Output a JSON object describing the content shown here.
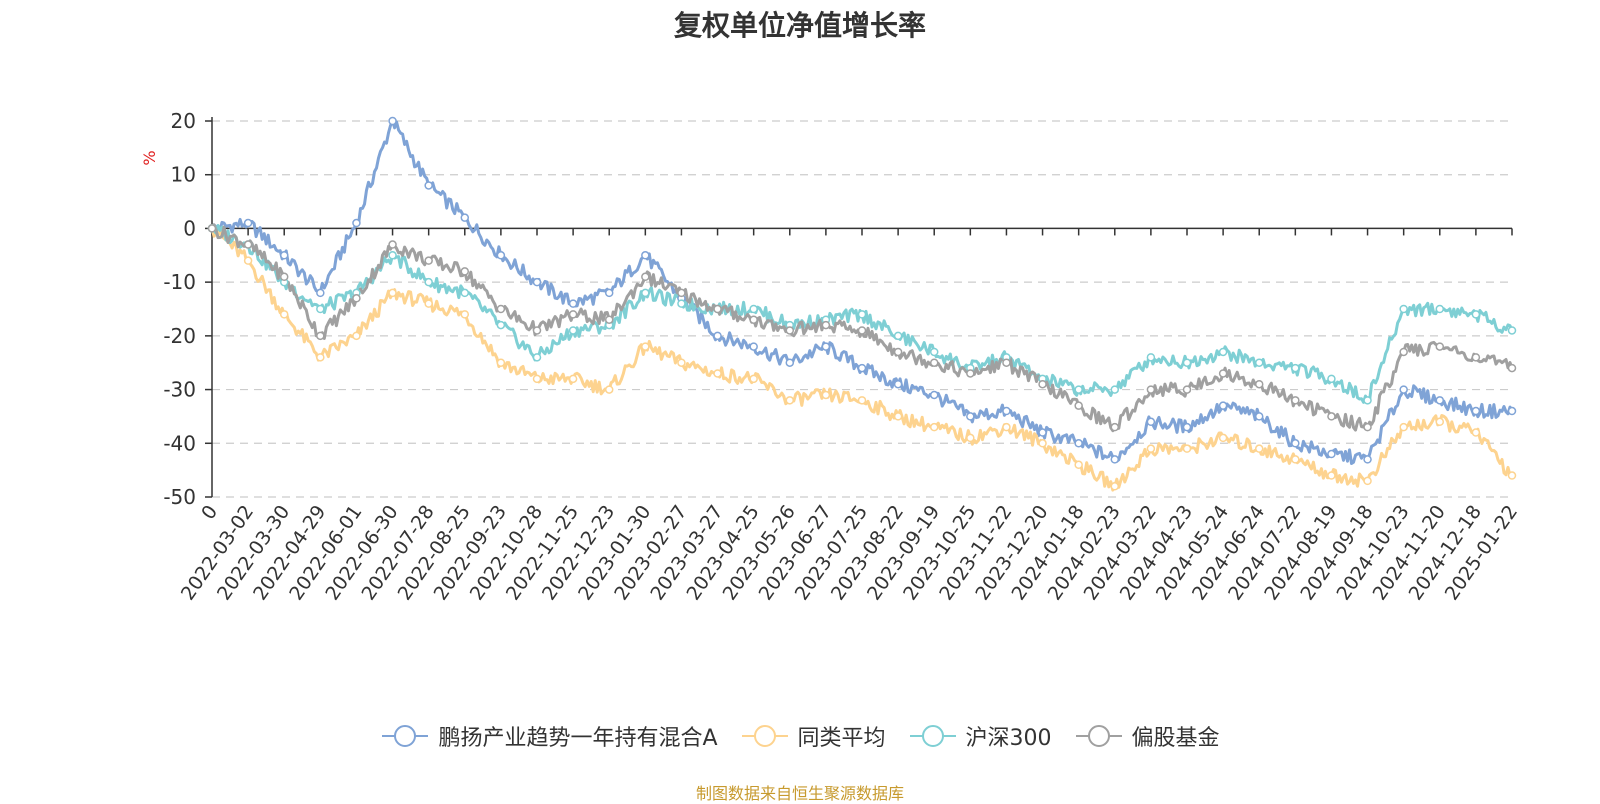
{
  "chart_data": {
    "type": "line",
    "title": "复权单位净值增长率",
    "ylabel": "%",
    "xlabel": "",
    "ylim": [
      -50,
      20
    ],
    "y_ticks": [
      20,
      10,
      0,
      -10,
      -20,
      -30,
      -40,
      -50
    ],
    "x_tick_labels": [
      "0",
      "2022-03-02",
      "2022-03-30",
      "2022-04-29",
      "2022-06-01",
      "2022-06-30",
      "2022-07-28",
      "2022-08-25",
      "2022-09-23",
      "2022-10-28",
      "2022-11-25",
      "2022-12-23",
      "2023-01-30",
      "2023-02-27",
      "2023-03-27",
      "2023-04-25",
      "2023-05-26",
      "2023-06-27",
      "2023-07-25",
      "2023-08-22",
      "2023-09-19",
      "2023-10-25",
      "2023-11-22",
      "2023-12-20",
      "2024-01-18",
      "2024-02-23",
      "2024-03-22",
      "2024-04-23",
      "2024-05-24",
      "2024-06-24",
      "2024-07-22",
      "2024-08-19",
      "2024-09-18",
      "2024-10-23",
      "2024-11-20",
      "2024-12-18",
      "2025-01-22"
    ],
    "grid": true,
    "legend_position": "bottom",
    "x_index_max": 72,
    "series": [
      {
        "name": "鹏扬产业趋势一年持有混合A",
        "color": "#7fa3d6",
        "x": [
          0,
          2,
          4,
          6,
          8,
          10,
          12,
          14,
          16,
          18,
          20,
          22,
          24,
          26,
          28,
          30,
          32,
          34,
          36,
          38,
          40,
          42,
          44,
          46,
          48,
          50,
          52,
          54,
          56,
          58,
          60,
          62,
          64,
          66,
          68,
          70,
          72
        ],
        "values": [
          0,
          1,
          -5,
          -12,
          1,
          20,
          8,
          2,
          -5,
          -10,
          -14,
          -12,
          -5,
          -13,
          -20,
          -22,
          -25,
          -22,
          -26,
          -29,
          -31,
          -35,
          -34,
          -38,
          -40,
          -43,
          -36,
          -37,
          -33,
          -35,
          -40,
          -42,
          -43,
          -30,
          -32,
          -34,
          -34
        ]
      },
      {
        "name": "同类平均",
        "color": "#fdd38f",
        "x": [
          0,
          2,
          4,
          6,
          8,
          10,
          12,
          14,
          16,
          18,
          20,
          22,
          24,
          26,
          28,
          30,
          32,
          34,
          36,
          38,
          40,
          42,
          44,
          46,
          48,
          50,
          52,
          54,
          56,
          58,
          60,
          62,
          64,
          66,
          68,
          70,
          72
        ],
        "values": [
          0,
          -6,
          -16,
          -24,
          -20,
          -12,
          -14,
          -16,
          -25,
          -28,
          -28,
          -30,
          -22,
          -25,
          -27,
          -28,
          -32,
          -31,
          -32,
          -35,
          -37,
          -39,
          -37,
          -40,
          -44,
          -48,
          -41,
          -41,
          -39,
          -41,
          -43,
          -46,
          -47,
          -37,
          -36,
          -38,
          -46
        ]
      },
      {
        "name": "沪深300",
        "color": "#7ecfd4",
        "x": [
          0,
          2,
          4,
          6,
          8,
          10,
          12,
          14,
          16,
          18,
          20,
          22,
          24,
          26,
          28,
          30,
          32,
          34,
          36,
          38,
          40,
          42,
          44,
          46,
          48,
          50,
          52,
          54,
          56,
          58,
          60,
          62,
          64,
          66,
          68,
          70,
          72
        ],
        "values": [
          0,
          -3,
          -10,
          -15,
          -12,
          -5,
          -10,
          -12,
          -18,
          -24,
          -19,
          -18,
          -12,
          -14,
          -15,
          -15,
          -18,
          -17,
          -16,
          -20,
          -23,
          -26,
          -24,
          -28,
          -30,
          -30,
          -24,
          -25,
          -23,
          -25,
          -26,
          -28,
          -32,
          -15,
          -15,
          -16,
          -19
        ]
      },
      {
        "name": "偏股基金",
        "color": "#a0a0a0",
        "x": [
          0,
          2,
          4,
          6,
          8,
          10,
          12,
          14,
          16,
          18,
          20,
          22,
          24,
          26,
          28,
          30,
          32,
          34,
          36,
          38,
          40,
          42,
          44,
          46,
          48,
          50,
          52,
          54,
          56,
          58,
          60,
          62,
          64,
          66,
          68,
          70,
          72
        ],
        "values": [
          0,
          -3,
          -9,
          -20,
          -13,
          -3,
          -6,
          -8,
          -15,
          -19,
          -16,
          -17,
          -9,
          -12,
          -15,
          -17,
          -19,
          -18,
          -19,
          -23,
          -25,
          -27,
          -25,
          -29,
          -33,
          -37,
          -30,
          -30,
          -27,
          -29,
          -32,
          -35,
          -37,
          -23,
          -22,
          -24,
          -26
        ]
      }
    ]
  },
  "footer": {
    "source": "制图数据来自恒生聚源数据库",
    "source_color": "#c79a2e"
  }
}
